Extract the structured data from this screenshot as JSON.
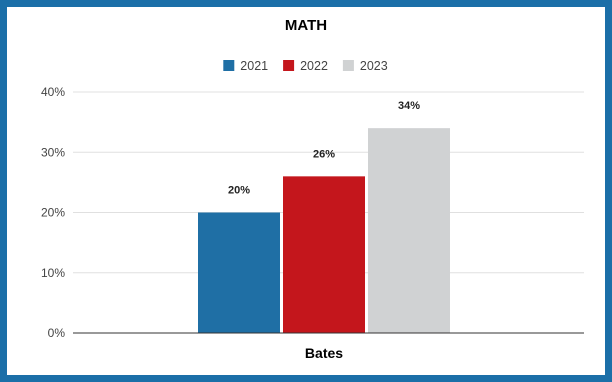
{
  "chart_data": {
    "type": "bar",
    "title": "MATH",
    "categories": [
      "Bates"
    ],
    "series": [
      {
        "name": "2021",
        "values": [
          20
        ],
        "color": "#1f6fa5",
        "label": "20%"
      },
      {
        "name": "2022",
        "values": [
          26
        ],
        "color": "#c4161c",
        "label": "26%"
      },
      {
        "name": "2023",
        "values": [
          34
        ],
        "color": "#d0d2d3",
        "label": "34%"
      }
    ],
    "ylim": [
      0,
      40
    ],
    "yticks": [
      "0%",
      "10%",
      "20%",
      "30%",
      "40%"
    ],
    "ytick_values": [
      0,
      10,
      20,
      30,
      40
    ],
    "xlabel": "",
    "ylabel": "",
    "grid": true,
    "legend_position": "top"
  },
  "colors": {
    "border": "#1b6fa8",
    "background": "#ffffff",
    "gridline": "#e0e0e0",
    "axis": "#333333"
  }
}
